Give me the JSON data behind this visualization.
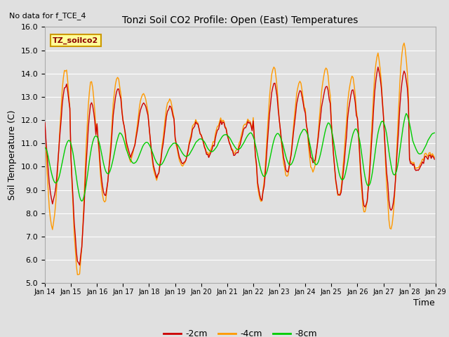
{
  "title": "Tonzi Soil CO2 Profile: Open (East) Temperatures",
  "subtitle": "No data for f_TCE_4",
  "xlabel": "Time",
  "ylabel": "Soil Temperature (C)",
  "ylim": [
    5.0,
    16.0
  ],
  "yticks": [
    5.0,
    6.0,
    7.0,
    8.0,
    9.0,
    10.0,
    11.0,
    12.0,
    13.0,
    14.0,
    15.0,
    16.0
  ],
  "xtick_labels": [
    "Jan 14",
    "Jan 15",
    "Jan 16",
    "Jan 17",
    "Jan 18",
    "Jan 19",
    "Jan 20",
    "Jan 21",
    "Jan 22",
    "Jan 23",
    "Jan 24",
    "Jan 25",
    "Jan 26",
    "Jan 27",
    "Jan 28",
    "Jan 29"
  ],
  "legend_labels": [
    "-2cm",
    "-4cm",
    "-8cm"
  ],
  "line_colors": [
    "#cc0000",
    "#ff9900",
    "#00cc00"
  ],
  "background_color": "#e0e0e0",
  "grid_color": "#ffffff",
  "annotation_text": "TZ_soilco2",
  "annotation_facecolor": "#ffff99",
  "annotation_edgecolor": "#cc9900"
}
